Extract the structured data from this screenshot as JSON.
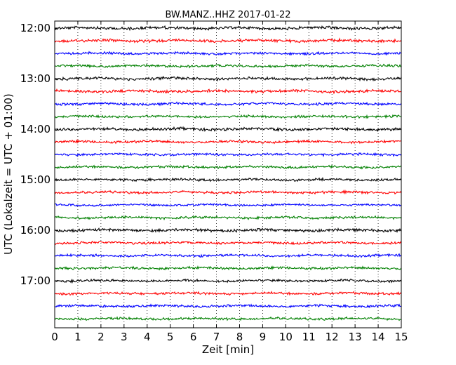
{
  "chart_data": {
    "type": "line",
    "title": "BW.MANZ..HHZ 2017-01-22",
    "xlabel": "Zeit  [min]",
    "ylabel": "UTC (Lokalzeit = UTC + 01:00)",
    "xlim": [
      0,
      15
    ],
    "x_ticks": [
      0,
      1,
      2,
      3,
      4,
      5,
      6,
      7,
      8,
      9,
      10,
      11,
      12,
      13,
      14,
      15
    ],
    "x_tick_labels": [
      "0",
      "1",
      "2",
      "3",
      "4",
      "5",
      "6",
      "7",
      "8",
      "9",
      "10",
      "11",
      "12",
      "13",
      "14",
      "15"
    ],
    "grid": "vertical dotted at each minute",
    "y_tick_labels": [
      {
        "label": "12:00",
        "trace_index": 0
      },
      {
        "label": "13:00",
        "trace_index": 4
      },
      {
        "label": "14:00",
        "trace_index": 8
      },
      {
        "label": "15:00",
        "trace_index": 12
      },
      {
        "label": "16:00",
        "trace_index": 16
      },
      {
        "label": "17:00",
        "trace_index": 20
      }
    ],
    "traces": [
      {
        "start": "12:00",
        "color": "#000000",
        "amplitude": 0.35
      },
      {
        "start": "12:15",
        "color": "#ff0000",
        "amplitude": 0.35
      },
      {
        "start": "12:30",
        "color": "#0000ff",
        "amplitude": 0.3
      },
      {
        "start": "12:45",
        "color": "#008000",
        "amplitude": 0.3
      },
      {
        "start": "13:00",
        "color": "#000000",
        "amplitude": 0.35
      },
      {
        "start": "13:15",
        "color": "#ff0000",
        "amplitude": 0.35
      },
      {
        "start": "13:30",
        "color": "#0000ff",
        "amplitude": 0.3
      },
      {
        "start": "13:45",
        "color": "#008000",
        "amplitude": 0.3
      },
      {
        "start": "14:00",
        "color": "#000000",
        "amplitude": 0.35
      },
      {
        "start": "14:15",
        "color": "#ff0000",
        "amplitude": 0.3
      },
      {
        "start": "14:30",
        "color": "#0000ff",
        "amplitude": 0.3
      },
      {
        "start": "14:45",
        "color": "#008000",
        "amplitude": 0.3
      },
      {
        "start": "15:00",
        "color": "#000000",
        "amplitude": 0.3
      },
      {
        "start": "15:15",
        "color": "#ff0000",
        "amplitude": 0.3
      },
      {
        "start": "15:30",
        "color": "#0000ff",
        "amplitude": 0.25
      },
      {
        "start": "15:45",
        "color": "#008000",
        "amplitude": 0.3
      },
      {
        "start": "16:00",
        "color": "#000000",
        "amplitude": 0.35
      },
      {
        "start": "16:15",
        "color": "#ff0000",
        "amplitude": 0.3
      },
      {
        "start": "16:30",
        "color": "#0000ff",
        "amplitude": 0.3
      },
      {
        "start": "16:45",
        "color": "#008000",
        "amplitude": 0.3
      },
      {
        "start": "17:00",
        "color": "#000000",
        "amplitude": 0.3
      },
      {
        "start": "17:15",
        "color": "#ff0000",
        "amplitude": 0.3
      },
      {
        "start": "17:30",
        "color": "#0000ff",
        "amplitude": 0.3
      },
      {
        "start": "17:45",
        "color": "#008000",
        "amplitude": 0.3
      }
    ]
  }
}
